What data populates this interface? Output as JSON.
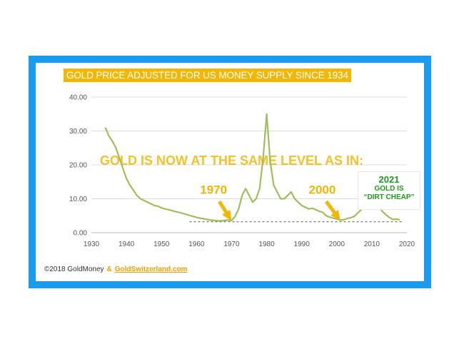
{
  "chart_data": {
    "type": "line",
    "title": "GOLD PRICE ADJUSTED FOR US MONEY SUPPLY SINCE 1934",
    "xlabel": "",
    "ylabel": "",
    "xlim": [
      1930,
      2020
    ],
    "ylim": [
      0,
      40
    ],
    "x_ticks": [
      "1930",
      "1940",
      "1950",
      "1960",
      "1970",
      "1980",
      "1990",
      "2000",
      "2010",
      "2020"
    ],
    "y_ticks": [
      "0.00",
      "10.00",
      "20.00",
      "30.00",
      "40.00"
    ],
    "grid": true,
    "series_color": "#9fbf5a",
    "highlight_color": "#f2b705",
    "x": [
      1934,
      1935,
      1936,
      1937,
      1938,
      1939,
      1940,
      1941,
      1942,
      1943,
      1944,
      1945,
      1946,
      1947,
      1948,
      1949,
      1950,
      1951,
      1952,
      1953,
      1954,
      1955,
      1956,
      1957,
      1958,
      1959,
      1960,
      1961,
      1962,
      1963,
      1964,
      1965,
      1966,
      1967,
      1968,
      1969,
      1970,
      1971,
      1972,
      1973,
      1974,
      1975,
      1976,
      1977,
      1978,
      1979,
      1980,
      1981,
      1982,
      1983,
      1984,
      1985,
      1986,
      1987,
      1988,
      1989,
      1990,
      1991,
      1992,
      1993,
      1994,
      1995,
      1996,
      1997,
      1998,
      1999,
      2000,
      2001,
      2002,
      2003,
      2004,
      2005,
      2006,
      2007,
      2008,
      2009,
      2010,
      2011,
      2012,
      2013,
      2014,
      2015,
      2016,
      2017,
      2018
    ],
    "y": [
      31,
      28.5,
      27,
      25,
      22,
      19,
      16,
      14,
      12.5,
      11,
      10,
      9.5,
      9,
      8.5,
      8,
      7.8,
      7.3,
      7,
      6.8,
      6.5,
      6.2,
      6,
      5.7,
      5.4,
      5.1,
      4.8,
      4.5,
      4.3,
      4.1,
      3.9,
      3.7,
      3.6,
      3.5,
      3.5,
      3.6,
      3.7,
      3.6,
      4.8,
      7,
      11,
      13,
      11,
      9,
      10,
      13,
      22,
      35,
      21,
      14,
      12,
      10,
      10,
      11,
      12,
      10,
      9,
      8,
      7.5,
      7,
      7.2,
      6.8,
      6.3,
      6,
      5,
      4.6,
      4.3,
      4,
      3.7,
      3.8,
      4.2,
      4.4,
      4.8,
      5.8,
      6.8,
      7.5,
      8,
      8.3,
      8.5,
      7.8,
      6.3,
      5.3,
      4.5,
      3.9,
      4,
      3.8
    ],
    "annotations": {
      "headline": "GOLD IS NOW AT THE SAME LEVEL AS IN:",
      "label_1970": "1970",
      "label_2000": "2000",
      "label_2021": "2021",
      "box_line1": "GOLD IS",
      "box_line2": "“DIRT CHEAP”",
      "reference_level": 3.2
    }
  },
  "credit": {
    "source": "©2018 GoldMoney",
    "amp": "&",
    "site": "GoldSwitzerland.com"
  },
  "colors": {
    "frame": "#1a9bf0",
    "title_bg": "#f2b705",
    "box_text": "#1f9a1f"
  }
}
